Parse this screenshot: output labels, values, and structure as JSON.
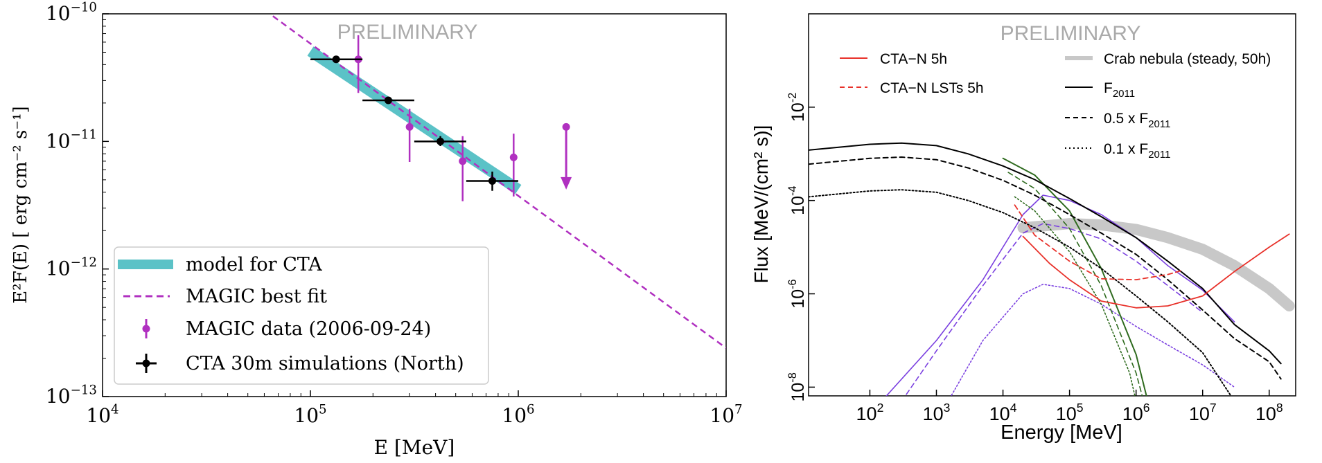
{
  "colors": {
    "cta_band": "#5bc2c7",
    "magic": "#b030c0",
    "cta_points": "#000000",
    "preliminary": "#aaaaaa",
    "red": "#e8312a",
    "green": "#2f6b1f",
    "purple": "#7a3fe0",
    "crab": "#c8c8c8"
  },
  "chart_data": [
    {
      "type": "scatter",
      "title": "",
      "watermark": "PRELIMINARY",
      "xlabel": "E [MeV]",
      "ylabel": "E²F(E)  [ erg cm⁻² s⁻¹]",
      "xscale": "log",
      "yscale": "log",
      "xlim": [
        10000,
        10000000
      ],
      "ylim": [
        1e-13,
        1e-10
      ],
      "xticks": [
        {
          "value": 10000,
          "base": "10",
          "exp": "4"
        },
        {
          "value": 100000,
          "base": "10",
          "exp": "5"
        },
        {
          "value": 1000000,
          "base": "10",
          "exp": "6"
        },
        {
          "value": 10000000,
          "base": "10",
          "exp": "7"
        }
      ],
      "yticks": [
        {
          "value": 1e-13,
          "base": "10",
          "exp": "−13"
        },
        {
          "value": 1e-12,
          "base": "10",
          "exp": "−12"
        },
        {
          "value": 1e-11,
          "base": "10",
          "exp": "−11"
        },
        {
          "value": 1e-10,
          "base": "10",
          "exp": "−10"
        }
      ],
      "legend": {
        "position": "lower-left",
        "entries": [
          {
            "label": "model for CTA",
            "style": "band"
          },
          {
            "label": "MAGIC best fit",
            "style": "dashed"
          },
          {
            "label": "MAGIC data (2006-09-24)",
            "style": "magic-point"
          },
          {
            "label": "CTA 30m simulations (North)",
            "style": "cta-point"
          }
        ]
      },
      "series": [
        {
          "name": "model for CTA",
          "kind": "band",
          "x": [
            100000,
            1000000
          ],
          "y": [
            5.1e-11,
            4.2e-12
          ]
        },
        {
          "name": "MAGIC best fit",
          "kind": "line",
          "x": [
            66000,
            10000000
          ],
          "y": [
            9.6e-11,
            2.4e-13
          ]
        },
        {
          "name": "MAGIC data (2006-09-24)",
          "kind": "errorbar",
          "points": [
            {
              "x": 170000,
              "y": 4.4e-11,
              "ylo": 2.4e-11,
              "yhi": 6.8e-11
            },
            {
              "x": 300000,
              "y": 1.3e-11,
              "ylo": 6.9e-12,
              "yhi": 1.8e-11
            },
            {
              "x": 540000,
              "y": 7e-12,
              "ylo": 3.4e-12,
              "yhi": 1.1e-11
            },
            {
              "x": 950000,
              "y": 7.5e-12,
              "ylo": 3.7e-12,
              "yhi": 1.15e-11
            }
          ]
        },
        {
          "name": "MAGIC upper limit",
          "kind": "upper-limit",
          "x": 1700000,
          "y": 1.3e-11,
          "arrow_to": 4.3e-12
        },
        {
          "name": "CTA 30m simulations (North)",
          "kind": "errorbar",
          "points": [
            {
              "x": 133000,
              "y": 4.4e-11,
              "xlo": 100000,
              "xhi": 178000,
              "ylo": 4.2e-11,
              "yhi": 4.6e-11
            },
            {
              "x": 237000,
              "y": 2.1e-11,
              "xlo": 178000,
              "xhi": 316000,
              "ylo": 2e-11,
              "yhi": 2.2e-11
            },
            {
              "x": 422000,
              "y": 1e-11,
              "xlo": 316000,
              "xhi": 562000,
              "ylo": 9.2e-12,
              "yhi": 1.1e-11
            },
            {
              "x": 750000,
              "y": 4.9e-12,
              "xlo": 562000,
              "xhi": 1000000,
              "ylo": 4.1e-12,
              "yhi": 5.8e-12
            }
          ]
        }
      ]
    },
    {
      "type": "line",
      "title": "",
      "watermark": "PRELIMINARY",
      "xlabel": "Energy [MeV]",
      "ylabel": "Flux [MeV/(cm² s)]",
      "xscale": "log",
      "yscale": "log",
      "xlim": [
        12,
        250000000
      ],
      "ylim": [
        6.5e-09,
        1
      ],
      "xticks": [
        {
          "value": 100,
          "base": "10",
          "exp": "2"
        },
        {
          "value": 1000,
          "base": "10",
          "exp": "3"
        },
        {
          "value": 10000,
          "base": "10",
          "exp": "4"
        },
        {
          "value": 100000,
          "base": "10",
          "exp": "5"
        },
        {
          "value": 1000000,
          "base": "10",
          "exp": "6"
        },
        {
          "value": 10000000,
          "base": "10",
          "exp": "7"
        },
        {
          "value": 100000000,
          "base": "10",
          "exp": "8"
        }
      ],
      "yticks": [
        {
          "value": 1e-08,
          "base": "10",
          "exp": "-8"
        },
        {
          "value": 1e-06,
          "base": "10",
          "exp": "-6"
        },
        {
          "value": 0.0001,
          "base": "10",
          "exp": "-4"
        },
        {
          "value": 0.01,
          "base": "10",
          "exp": "-2"
        }
      ],
      "legend": {
        "position": "top",
        "entries": [
          {
            "label": "CTA−N 5h",
            "style": "red-solid"
          },
          {
            "label": "CTA−N LSTs 5h",
            "style": "red-dashed"
          },
          {
            "label": "Crab nebula (steady, 50h)",
            "style": "grey-band"
          },
          {
            "label": "F",
            "sub": "2011",
            "style": "black-solid"
          },
          {
            "label": "0.5 x F",
            "sub": "2011",
            "style": "black-dashed"
          },
          {
            "label": "0.1 x F",
            "sub": "2011",
            "style": "black-dotted"
          }
        ]
      },
      "series": [
        {
          "name": "F2011",
          "style": "black-solid",
          "x": [
            12,
            100,
            300,
            1000,
            3000,
            10000,
            30000,
            100000,
            300000,
            1000000,
            3000000,
            10000000,
            30000000,
            100000000,
            150000000
          ],
          "y": [
            0.0012,
            0.0016,
            0.0017,
            0.0015,
            0.001,
            0.00055,
            0.00028,
            0.00011,
            4.5e-05,
            1.6e-05,
            5e-06,
            1.3e-06,
            2.2e-07,
            6e-08,
            3.2e-08
          ]
        },
        {
          "name": "0.5 x F2011",
          "style": "black-dashed",
          "x": [
            12,
            100,
            300,
            1000,
            3000,
            10000,
            30000,
            100000,
            300000,
            1000000,
            3000000,
            10000000,
            30000000,
            100000000,
            150000000
          ],
          "y": [
            0.0006,
            0.0008,
            0.00085,
            0.00075,
            0.0005,
            0.00027,
            0.00013,
            5e-05,
            2e-05,
            7e-06,
            2e-06,
            4.5e-07,
            1.1e-07,
            3.5e-08,
            1.5e-08
          ]
        },
        {
          "name": "0.1 x F2011",
          "style": "black-dotted",
          "x": [
            12,
            100,
            300,
            1000,
            3000,
            10000,
            30000,
            100000,
            300000,
            1000000,
            3000000,
            10000000,
            30000000
          ],
          "y": [
            0.00012,
            0.00016,
            0.00017,
            0.00015,
            0.0001,
            5.5e-05,
            2.6e-05,
            1e-05,
            3.5e-06,
            9e-07,
            2.5e-07,
            5.5e-08,
            5e-09
          ]
        },
        {
          "name": "green solid",
          "style": "green-solid",
          "x": [
            10000,
            30000,
            100000,
            300000,
            1000000,
            1500000
          ],
          "y": [
            0.0008,
            0.00035,
            6e-05,
            3.5e-06,
            5e-08,
            5e-09
          ]
        },
        {
          "name": "green dashed",
          "style": "green-dashed",
          "x": [
            12000,
            30000,
            100000,
            300000,
            1000000,
            1300000
          ],
          "y": [
            0.0004,
            0.00018,
            2.5e-05,
            1.5e-06,
            2e-08,
            5e-09
          ]
        },
        {
          "name": "green dotted",
          "style": "green-dotted",
          "x": [
            15000,
            30000,
            100000,
            300000,
            800000,
            1000000
          ],
          "y": [
            0.00012,
            6e-05,
            8e-06,
            6e-07,
            2e-08,
            5e-09
          ]
        },
        {
          "name": "purple solid",
          "style": "purple-solid",
          "x": [
            150,
            1000,
            5000,
            20000,
            40000,
            100000,
            300000,
            1000000,
            3000000,
            10000000,
            30000000
          ],
          "y": [
            5e-09,
            1e-07,
            2e-06,
            5e-05,
            0.00013,
            0.0001,
            5e-05,
            1.6e-05,
            4e-06,
            1.2e-06,
            2.5e-07
          ]
        },
        {
          "name": "purple dashed",
          "style": "purple-dashed",
          "x": [
            300,
            1000,
            5000,
            20000,
            40000,
            100000,
            300000,
            1000000,
            3000000,
            10000000
          ],
          "y": [
            5e-09,
            6e-08,
            1.5e-06,
            2e-05,
            3.2e-05,
            2.5e-05,
            1.5e-05,
            5e-06,
            1.5e-06,
            4e-07
          ]
        },
        {
          "name": "purple dotted",
          "style": "purple-dotted",
          "x": [
            1500,
            5000,
            20000,
            40000,
            100000,
            300000,
            1000000,
            3000000,
            10000000,
            30000000
          ],
          "y": [
            5e-09,
            1e-07,
            1e-06,
            1.6e-06,
            1.3e-06,
            6e-07,
            2e-07,
            8e-08,
            3e-08,
            1e-08
          ]
        },
        {
          "name": "Crab nebula (steady, 50h)",
          "style": "grey-band",
          "x": [
            20000,
            100000,
            300000,
            1000000,
            3000000,
            10000000,
            30000000,
            100000000,
            200000000
          ],
          "y": [
            2.6e-05,
            3.2e-05,
            3e-05,
            2.4e-05,
            1.6e-05,
            9e-06,
            4e-06,
            1.3e-06,
            5.5e-07
          ]
        },
        {
          "name": "CTA−N 5h",
          "style": "red-solid",
          "x": [
            20000,
            50000,
            100000,
            300000,
            1000000,
            2000000,
            3000000,
            10000000,
            30000000,
            100000000,
            200000000
          ],
          "y": [
            1.7e-05,
            4.5e-06,
            2e-06,
            7e-07,
            5e-07,
            5.3e-07,
            5.5e-07,
            9e-07,
            3e-06,
            1e-05,
            1.9e-05
          ]
        },
        {
          "name": "CTA−N LSTs 5h",
          "style": "red-dashed",
          "x": [
            15000,
            30000,
            100000,
            300000,
            1000000,
            3000000,
            5000000
          ],
          "y": [
            8e-05,
            1.8e-05,
            5e-06,
            2.1e-06,
            2e-06,
            2.6e-06,
            3.2e-06
          ]
        }
      ]
    }
  ]
}
